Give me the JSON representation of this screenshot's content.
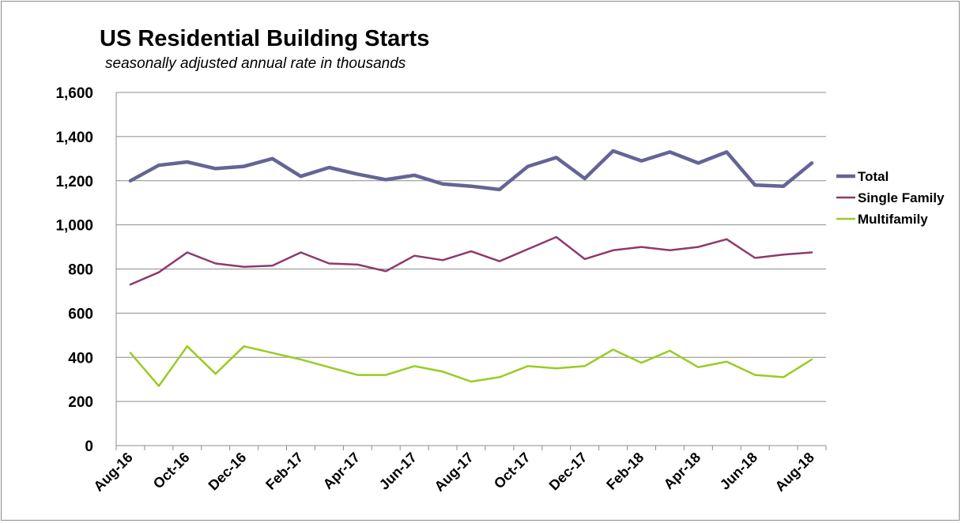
{
  "chart_data": {
    "type": "line",
    "title": "US Residential Building Starts",
    "subtitle": "seasonally adjusted annual rate in thousands",
    "xlabel": "",
    "ylabel": "",
    "ylim": [
      0,
      1600
    ],
    "yticks": [
      "1,600",
      "1,400",
      "1,200",
      "1,000",
      "800",
      "600",
      "400",
      "200",
      "0"
    ],
    "ytick_values": [
      1600,
      1400,
      1200,
      1000,
      800,
      600,
      400,
      200,
      0
    ],
    "x": [
      "Aug-16",
      "Sep-16",
      "Oct-16",
      "Nov-16",
      "Dec-16",
      "Jan-17",
      "Feb-17",
      "Mar-17",
      "Apr-17",
      "May-17",
      "Jun-17",
      "Jul-17",
      "Aug-17",
      "Sep-17",
      "Oct-17",
      "Nov-17",
      "Dec-17",
      "Jan-18",
      "Feb-18",
      "Mar-18",
      "Apr-18",
      "May-18",
      "Jun-18",
      "Jul-18",
      "Aug-18"
    ],
    "xticks_shown": [
      "Aug-16",
      "Oct-16",
      "Dec-16",
      "Feb-17",
      "Apr-17",
      "Jun-17",
      "Aug-17",
      "Oct-17",
      "Dec-17",
      "Feb-18",
      "Apr-18",
      "Jun-18",
      "Aug-18"
    ],
    "grid": true,
    "legend_position": "right",
    "series": [
      {
        "name": "Total",
        "color": "#646496",
        "values": [
          1200,
          1270,
          1285,
          1255,
          1265,
          1300,
          1220,
          1260,
          1230,
          1205,
          1225,
          1185,
          1175,
          1160,
          1265,
          1305,
          1210,
          1335,
          1290,
          1330,
          1280,
          1330,
          1180,
          1175,
          1280
        ]
      },
      {
        "name": "Single Family",
        "color": "#8e3a6a",
        "values": [
          730,
          785,
          875,
          825,
          810,
          815,
          875,
          825,
          820,
          790,
          860,
          840,
          880,
          835,
          890,
          945,
          845,
          885,
          900,
          885,
          900,
          935,
          850,
          865,
          875
        ]
      },
      {
        "name": "Multifamily",
        "color": "#99cc22",
        "values": [
          420,
          270,
          450,
          325,
          450,
          420,
          390,
          355,
          320,
          320,
          360,
          335,
          290,
          310,
          360,
          350,
          360,
          435,
          375,
          430,
          355,
          380,
          320,
          310,
          390
        ]
      }
    ]
  }
}
